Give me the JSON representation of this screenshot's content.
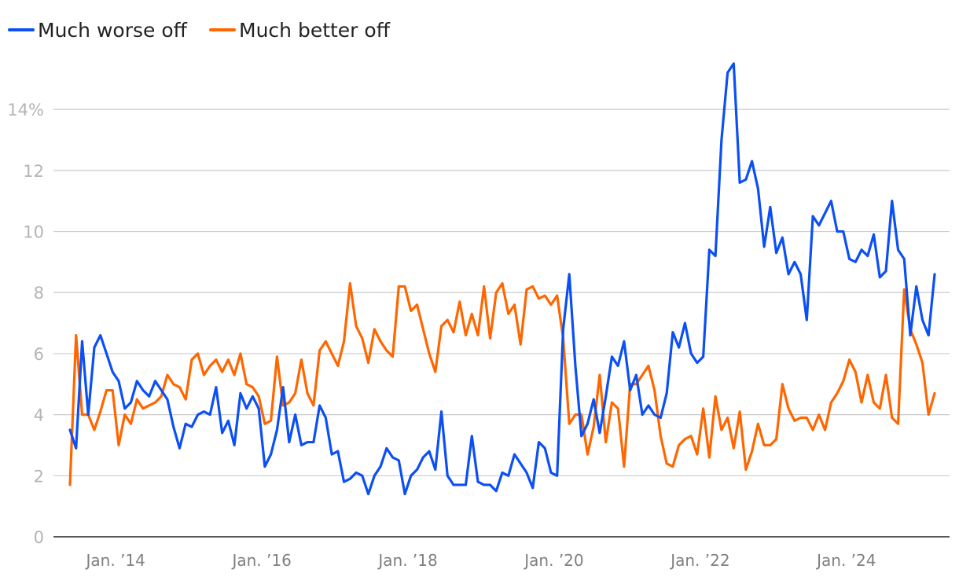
{
  "chart_data": {
    "type": "line",
    "y_unit_suffix": "%",
    "ylim": [
      0,
      15.6
    ],
    "yticks": [
      0,
      2,
      4,
      6,
      8,
      10,
      12,
      14
    ],
    "ytick_labels": [
      "0",
      "2",
      "4",
      "6",
      "8",
      "10",
      "12",
      "14%"
    ],
    "grid": true,
    "legend_position": "top-left",
    "x_axis_type": "date",
    "x_start": "2013-06",
    "x_end": "2025-07",
    "xticks": [
      {
        "date": "2014-01",
        "label": "Jan. ’14"
      },
      {
        "date": "2016-01",
        "label": "Jan. ’16"
      },
      {
        "date": "2018-01",
        "label": "Jan. ’18"
      },
      {
        "date": "2020-01",
        "label": "Jan. ’20"
      },
      {
        "date": "2022-01",
        "label": "Jan. ’22"
      },
      {
        "date": "2024-01",
        "label": "Jan. ’24"
      }
    ],
    "series": [
      {
        "name": "Much worse off",
        "color": "#0b4ff5",
        "points": [
          [
            "2013-06",
            3.5
          ],
          [
            "2013-07",
            2.9
          ],
          [
            "2013-08",
            6.4
          ],
          [
            "2013-09",
            4.0
          ],
          [
            "2013-10",
            6.2
          ],
          [
            "2013-11",
            6.6
          ],
          [
            "2013-12",
            6.0
          ],
          [
            "2014-01",
            5.4
          ],
          [
            "2014-02",
            5.1
          ],
          [
            "2014-03",
            4.2
          ],
          [
            "2014-04",
            4.4
          ],
          [
            "2014-05",
            5.1
          ],
          [
            "2014-06",
            4.8
          ],
          [
            "2014-07",
            4.6
          ],
          [
            "2014-08",
            5.1
          ],
          [
            "2014-09",
            4.8
          ],
          [
            "2014-10",
            4.5
          ],
          [
            "2014-11",
            3.6
          ],
          [
            "2014-12",
            2.9
          ],
          [
            "2015-01",
            3.7
          ],
          [
            "2015-02",
            3.6
          ],
          [
            "2015-03",
            4.0
          ],
          [
            "2015-04",
            4.1
          ],
          [
            "2015-05",
            4.0
          ],
          [
            "2015-06",
            4.9
          ],
          [
            "2015-07",
            3.4
          ],
          [
            "2015-08",
            3.8
          ],
          [
            "2015-09",
            3.0
          ],
          [
            "2015-10",
            4.7
          ],
          [
            "2015-11",
            4.2
          ],
          [
            "2015-12",
            4.6
          ],
          [
            "2016-01",
            4.2
          ],
          [
            "2016-02",
            2.3
          ],
          [
            "2016-03",
            2.7
          ],
          [
            "2016-04",
            3.5
          ],
          [
            "2016-05",
            4.9
          ],
          [
            "2016-06",
            3.1
          ],
          [
            "2016-07",
            4.0
          ],
          [
            "2016-08",
            3.0
          ],
          [
            "2016-09",
            3.1
          ],
          [
            "2016-10",
            3.1
          ],
          [
            "2016-11",
            4.3
          ],
          [
            "2016-12",
            3.9
          ],
          [
            "2017-01",
            2.7
          ],
          [
            "2017-02",
            2.8
          ],
          [
            "2017-03",
            1.8
          ],
          [
            "2017-04",
            1.9
          ],
          [
            "2017-05",
            2.1
          ],
          [
            "2017-06",
            2.0
          ],
          [
            "2017-07",
            1.4
          ],
          [
            "2017-08",
            2.0
          ],
          [
            "2017-09",
            2.3
          ],
          [
            "2017-10",
            2.9
          ],
          [
            "2017-11",
            2.6
          ],
          [
            "2017-12",
            2.5
          ],
          [
            "2018-01",
            1.4
          ],
          [
            "2018-02",
            2.0
          ],
          [
            "2018-03",
            2.2
          ],
          [
            "2018-04",
            2.6
          ],
          [
            "2018-05",
            2.8
          ],
          [
            "2018-06",
            2.2
          ],
          [
            "2018-07",
            4.1
          ],
          [
            "2018-08",
            2.0
          ],
          [
            "2018-09",
            1.7
          ],
          [
            "2018-10",
            1.7
          ],
          [
            "2018-11",
            1.7
          ],
          [
            "2018-12",
            3.3
          ],
          [
            "2019-01",
            1.8
          ],
          [
            "2019-02",
            1.7
          ],
          [
            "2019-03",
            1.7
          ],
          [
            "2019-04",
            1.5
          ],
          [
            "2019-05",
            2.1
          ],
          [
            "2019-06",
            2.0
          ],
          [
            "2019-07",
            2.7
          ],
          [
            "2019-08",
            2.4
          ],
          [
            "2019-09",
            2.1
          ],
          [
            "2019-10",
            1.6
          ],
          [
            "2019-11",
            3.1
          ],
          [
            "2019-12",
            2.9
          ],
          [
            "2020-01",
            2.1
          ],
          [
            "2020-02",
            2.0
          ],
          [
            "2020-03",
            6.8
          ],
          [
            "2020-04",
            8.6
          ],
          [
            "2020-05",
            5.6
          ],
          [
            "2020-06",
            3.3
          ],
          [
            "2020-07",
            3.7
          ],
          [
            "2020-08",
            4.5
          ],
          [
            "2020-09",
            3.4
          ],
          [
            "2020-10",
            4.6
          ],
          [
            "2020-11",
            5.9
          ],
          [
            "2020-12",
            5.6
          ],
          [
            "2021-01",
            6.4
          ],
          [
            "2021-02",
            4.8
          ],
          [
            "2021-03",
            5.3
          ],
          [
            "2021-04",
            4.0
          ],
          [
            "2021-05",
            4.3
          ],
          [
            "2021-06",
            4.0
          ],
          [
            "2021-07",
            3.9
          ],
          [
            "2021-08",
            4.7
          ],
          [
            "2021-09",
            6.7
          ],
          [
            "2021-10",
            6.2
          ],
          [
            "2021-11",
            7.0
          ],
          [
            "2021-12",
            6.0
          ],
          [
            "2022-01",
            5.7
          ],
          [
            "2022-02",
            5.9
          ],
          [
            "2022-03",
            9.4
          ],
          [
            "2022-04",
            9.2
          ],
          [
            "2022-05",
            13.0
          ],
          [
            "2022-06",
            15.2
          ],
          [
            "2022-07",
            15.5
          ],
          [
            "2022-08",
            11.6
          ],
          [
            "2022-09",
            11.7
          ],
          [
            "2022-10",
            12.3
          ],
          [
            "2022-11",
            11.4
          ],
          [
            "2022-12",
            9.5
          ],
          [
            "2023-01",
            10.8
          ],
          [
            "2023-02",
            9.3
          ],
          [
            "2023-03",
            9.8
          ],
          [
            "2023-04",
            8.6
          ],
          [
            "2023-05",
            9.0
          ],
          [
            "2023-06",
            8.6
          ],
          [
            "2023-07",
            7.1
          ],
          [
            "2023-08",
            10.5
          ],
          [
            "2023-09",
            10.2
          ],
          [
            "2023-10",
            10.6
          ],
          [
            "2023-11",
            11.0
          ],
          [
            "2023-12",
            10.0
          ],
          [
            "2024-01",
            10.0
          ],
          [
            "2024-02",
            9.1
          ],
          [
            "2024-03",
            9.0
          ],
          [
            "2024-04",
            9.4
          ],
          [
            "2024-05",
            9.2
          ],
          [
            "2024-06",
            9.9
          ],
          [
            "2024-07",
            8.5
          ],
          [
            "2024-08",
            8.7
          ],
          [
            "2024-09",
            11.0
          ],
          [
            "2024-10",
            9.4
          ],
          [
            "2024-11",
            9.1
          ],
          [
            "2024-12",
            6.6
          ],
          [
            "2025-01",
            8.2
          ],
          [
            "2025-02",
            7.1
          ],
          [
            "2025-03",
            6.6
          ],
          [
            "2025-04",
            8.6
          ]
        ]
      },
      {
        "name": "Much better off",
        "color": "#ff6600",
        "points": [
          [
            "2013-06",
            1.7
          ],
          [
            "2013-07",
            6.6
          ],
          [
            "2013-08",
            4.0
          ],
          [
            "2013-09",
            4.0
          ],
          [
            "2013-10",
            3.5
          ],
          [
            "2013-11",
            4.1
          ],
          [
            "2013-12",
            4.8
          ],
          [
            "2014-01",
            4.8
          ],
          [
            "2014-02",
            3.0
          ],
          [
            "2014-03",
            4.0
          ],
          [
            "2014-04",
            3.7
          ],
          [
            "2014-05",
            4.5
          ],
          [
            "2014-06",
            4.2
          ],
          [
            "2014-07",
            4.3
          ],
          [
            "2014-08",
            4.4
          ],
          [
            "2014-09",
            4.6
          ],
          [
            "2014-10",
            5.3
          ],
          [
            "2014-11",
            5.0
          ],
          [
            "2014-12",
            4.9
          ],
          [
            "2015-01",
            4.5
          ],
          [
            "2015-02",
            5.8
          ],
          [
            "2015-03",
            6.0
          ],
          [
            "2015-04",
            5.3
          ],
          [
            "2015-05",
            5.6
          ],
          [
            "2015-06",
            5.8
          ],
          [
            "2015-07",
            5.4
          ],
          [
            "2015-08",
            5.8
          ],
          [
            "2015-09",
            5.3
          ],
          [
            "2015-10",
            6.0
          ],
          [
            "2015-11",
            5.0
          ],
          [
            "2015-12",
            4.9
          ],
          [
            "2016-01",
            4.6
          ],
          [
            "2016-02",
            3.7
          ],
          [
            "2016-03",
            3.8
          ],
          [
            "2016-04",
            5.9
          ],
          [
            "2016-05",
            4.3
          ],
          [
            "2016-06",
            4.4
          ],
          [
            "2016-07",
            4.7
          ],
          [
            "2016-08",
            5.8
          ],
          [
            "2016-09",
            4.7
          ],
          [
            "2016-10",
            4.3
          ],
          [
            "2016-11",
            6.1
          ],
          [
            "2016-12",
            6.4
          ],
          [
            "2017-01",
            6.0
          ],
          [
            "2017-02",
            5.6
          ],
          [
            "2017-03",
            6.4
          ],
          [
            "2017-04",
            8.3
          ],
          [
            "2017-05",
            6.9
          ],
          [
            "2017-06",
            6.5
          ],
          [
            "2017-07",
            5.7
          ],
          [
            "2017-08",
            6.8
          ],
          [
            "2017-09",
            6.4
          ],
          [
            "2017-10",
            6.1
          ],
          [
            "2017-11",
            5.9
          ],
          [
            "2017-12",
            8.2
          ],
          [
            "2018-01",
            8.2
          ],
          [
            "2018-02",
            7.4
          ],
          [
            "2018-03",
            7.6
          ],
          [
            "2018-04",
            6.8
          ],
          [
            "2018-05",
            6.0
          ],
          [
            "2018-06",
            5.4
          ],
          [
            "2018-07",
            6.9
          ],
          [
            "2018-08",
            7.1
          ],
          [
            "2018-09",
            6.7
          ],
          [
            "2018-10",
            7.7
          ],
          [
            "2018-11",
            6.6
          ],
          [
            "2018-12",
            7.3
          ],
          [
            "2019-01",
            6.6
          ],
          [
            "2019-02",
            8.2
          ],
          [
            "2019-03",
            6.5
          ],
          [
            "2019-04",
            8.0
          ],
          [
            "2019-05",
            8.3
          ],
          [
            "2019-06",
            7.3
          ],
          [
            "2019-07",
            7.6
          ],
          [
            "2019-08",
            6.3
          ],
          [
            "2019-09",
            8.1
          ],
          [
            "2019-10",
            8.2
          ],
          [
            "2019-11",
            7.8
          ],
          [
            "2019-12",
            7.9
          ],
          [
            "2020-01",
            7.6
          ],
          [
            "2020-02",
            7.9
          ],
          [
            "2020-03",
            6.5
          ],
          [
            "2020-04",
            3.7
          ],
          [
            "2020-05",
            4.0
          ],
          [
            "2020-06",
            4.0
          ],
          [
            "2020-07",
            2.7
          ],
          [
            "2020-08",
            3.6
          ],
          [
            "2020-09",
            5.3
          ],
          [
            "2020-10",
            3.1
          ],
          [
            "2020-11",
            4.4
          ],
          [
            "2020-12",
            4.2
          ],
          [
            "2021-01",
            2.3
          ],
          [
            "2021-02",
            5.0
          ],
          [
            "2021-03",
            5.0
          ],
          [
            "2021-04",
            5.3
          ],
          [
            "2021-05",
            5.6
          ],
          [
            "2021-06",
            4.8
          ],
          [
            "2021-07",
            3.3
          ],
          [
            "2021-08",
            2.4
          ],
          [
            "2021-09",
            2.3
          ],
          [
            "2021-10",
            3.0
          ],
          [
            "2021-11",
            3.2
          ],
          [
            "2021-12",
            3.3
          ],
          [
            "2022-01",
            2.7
          ],
          [
            "2022-02",
            4.2
          ],
          [
            "2022-03",
            2.6
          ],
          [
            "2022-04",
            4.6
          ],
          [
            "2022-05",
            3.5
          ],
          [
            "2022-06",
            3.9
          ],
          [
            "2022-07",
            2.9
          ],
          [
            "2022-08",
            4.1
          ],
          [
            "2022-09",
            2.2
          ],
          [
            "2022-10",
            2.8
          ],
          [
            "2022-11",
            3.7
          ],
          [
            "2022-12",
            3.0
          ],
          [
            "2023-01",
            3.0
          ],
          [
            "2023-02",
            3.2
          ],
          [
            "2023-03",
            5.0
          ],
          [
            "2023-04",
            4.2
          ],
          [
            "2023-05",
            3.8
          ],
          [
            "2023-06",
            3.9
          ],
          [
            "2023-07",
            3.9
          ],
          [
            "2023-08",
            3.5
          ],
          [
            "2023-09",
            4.0
          ],
          [
            "2023-10",
            3.5
          ],
          [
            "2023-11",
            4.4
          ],
          [
            "2023-12",
            4.7
          ],
          [
            "2024-01",
            5.1
          ],
          [
            "2024-02",
            5.8
          ],
          [
            "2024-03",
            5.4
          ],
          [
            "2024-04",
            4.4
          ],
          [
            "2024-05",
            5.3
          ],
          [
            "2024-06",
            4.4
          ],
          [
            "2024-07",
            4.2
          ],
          [
            "2024-08",
            5.3
          ],
          [
            "2024-09",
            3.9
          ],
          [
            "2024-10",
            3.7
          ],
          [
            "2024-11",
            8.1
          ],
          [
            "2024-12",
            6.8
          ],
          [
            "2025-01",
            6.3
          ],
          [
            "2025-02",
            5.7
          ],
          [
            "2025-03",
            4.0
          ],
          [
            "2025-04",
            4.7
          ]
        ]
      }
    ]
  }
}
